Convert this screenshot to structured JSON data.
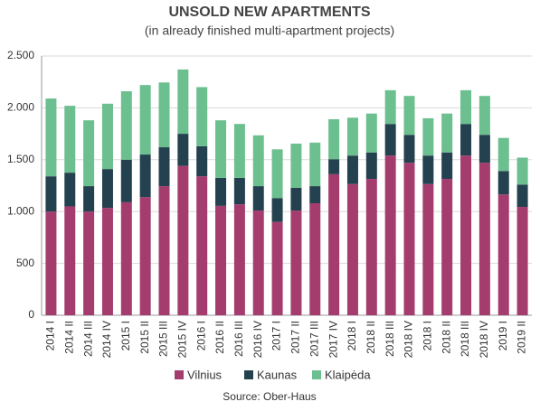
{
  "chart_data": {
    "type": "stacked_bar",
    "title": "UNSOLD NEW APARTMENTS",
    "subtitle": "(in already finished multi-apartment projects)",
    "source": "Source: Ober-Haus",
    "categories": [
      "2014 I",
      "2014 II",
      "2014 III",
      "2014 IV",
      "2015 I",
      "2015 II",
      "2015 III",
      "2015 IV",
      "2016 I",
      "2016 II",
      "2016 III",
      "2016 IV",
      "2017 I",
      "2017 II",
      "2017 III",
      "2017 IV",
      "2018 I",
      "2018 II",
      "2018 III",
      "2018 IV",
      "2018 I",
      "2018 II",
      "2018 III",
      "2018 IV",
      "2019 I",
      "2019 II"
    ],
    "series": [
      {
        "name": "Vilnius",
        "color": "#a53c6e",
        "values": [
          1000,
          1050,
          1000,
          1035,
          1090,
          1140,
          1245,
          1440,
          1340,
          1055,
          1070,
          1010,
          900,
          1010,
          1080,
          1360,
          1265,
          1315,
          1540,
          1470,
          1265,
          1315,
          1540,
          1470,
          1165,
          1045
        ]
      },
      {
        "name": "Kaunas",
        "color": "#24414f",
        "values": [
          340,
          325,
          245,
          375,
          410,
          410,
          375,
          310,
          290,
          270,
          255,
          235,
          230,
          220,
          165,
          145,
          275,
          255,
          305,
          270,
          275,
          255,
          305,
          270,
          225,
          215
        ]
      },
      {
        "name": "Klaipėda",
        "color": "#6cbf8e",
        "values": [
          750,
          645,
          635,
          630,
          660,
          670,
          625,
          620,
          570,
          555,
          520,
          490,
          470,
          425,
          420,
          385,
          365,
          375,
          325,
          375,
          360,
          375,
          325,
          375,
          320,
          260
        ]
      }
    ],
    "ylim": [
      0,
      2500
    ],
    "yticks": [
      0,
      500,
      {
        "value": 1000,
        "label": "1.000"
      },
      {
        "value": 1500,
        "label": "1.500"
      },
      {
        "value": 2000,
        "label": "2.000"
      },
      {
        "value": 2500,
        "label": "2.500"
      }
    ],
    "grid": true
  }
}
